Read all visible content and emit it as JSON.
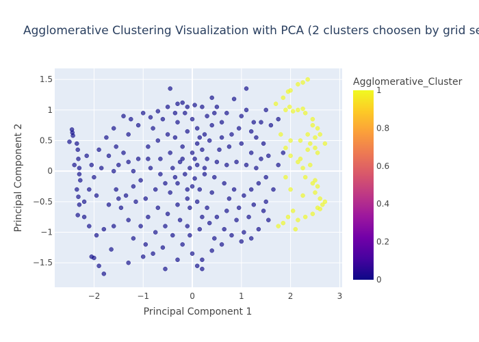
{
  "chart_data": {
    "type": "scatter",
    "title": "Agglomerative Clustering Visualization with PCA (2 clusters choosen by grid search)",
    "xlabel": "Principal Component 1",
    "ylabel": "Principal Component 2",
    "xlim": [
      -2.8,
      3.05
    ],
    "ylim": [
      -1.9,
      1.68
    ],
    "xticks": [
      -2,
      -1,
      0,
      1,
      2,
      3
    ],
    "yticks": [
      -1.5,
      -1,
      -0.5,
      0,
      0.5,
      1,
      1.5
    ],
    "xtick_labels": [
      "−2",
      "−1",
      "0",
      "1",
      "2",
      "3"
    ],
    "ytick_labels": [
      "−1.5",
      "−1",
      "−0.5",
      "0",
      "0.5",
      "1",
      "1.5"
    ],
    "grid": true,
    "colorbar": {
      "title": "Agglomerative_Cluster",
      "range": [
        0,
        1
      ],
      "ticks": [
        "0",
        "0.2",
        "0.4",
        "0.6",
        "0.8",
        "1"
      ],
      "colorscale": [
        "#0d0887",
        "#46039f",
        "#7201a8",
        "#9c179e",
        "#bd3786",
        "#d8576b",
        "#ed7953",
        "#fb9f3a",
        "#fdca26",
        "#f0f921"
      ]
    },
    "series": [
      {
        "cluster": 0,
        "color": "#0d0887",
        "points": [
          [
            -2.45,
            0.68
          ],
          [
            -2.44,
            0.63
          ],
          [
            -2.43,
            0.58
          ],
          [
            -2.35,
            0.45
          ],
          [
            -2.33,
            0.35
          ],
          [
            -2.32,
            0.2
          ],
          [
            -2.3,
            0.05
          ],
          [
            -2.3,
            -0.05
          ],
          [
            -2.28,
            -0.15
          ],
          [
            -2.35,
            -0.3
          ],
          [
            -2.32,
            -0.42
          ],
          [
            -2.2,
            -0.5
          ],
          [
            -2.4,
            0.1
          ],
          [
            -2.5,
            0.48
          ],
          [
            -2.33,
            -0.72
          ],
          [
            -2.2,
            -0.75
          ],
          [
            -2.05,
            -1.4
          ],
          [
            -2.0,
            -1.42
          ],
          [
            -1.9,
            -1.55
          ],
          [
            -1.8,
            -1.68
          ],
          [
            -1.65,
            -1.28
          ],
          [
            -1.8,
            -0.95
          ],
          [
            -1.95,
            -0.4
          ],
          [
            -2.1,
            -0.3
          ],
          [
            -2.05,
            0.1
          ],
          [
            -1.9,
            0.35
          ],
          [
            -1.7,
            0.25
          ],
          [
            -1.55,
            0.4
          ],
          [
            -1.75,
            0.55
          ],
          [
            -1.6,
            0.7
          ],
          [
            -1.5,
            0.1
          ],
          [
            -1.4,
            0.3
          ],
          [
            -1.3,
            0.6
          ],
          [
            -1.25,
            0.85
          ],
          [
            -1.1,
            0.75
          ],
          [
            -1.0,
            0.95
          ],
          [
            -0.85,
            0.88
          ],
          [
            -0.7,
            0.98
          ],
          [
            -0.5,
            1.05
          ],
          [
            -0.3,
            1.1
          ],
          [
            -0.1,
            1.05
          ],
          [
            0.05,
            1.08
          ],
          [
            0.2,
            1.05
          ],
          [
            -0.45,
            1.35
          ],
          [
            -0.2,
            1.12
          ],
          [
            0.4,
            1.2
          ],
          [
            0.5,
            1.05
          ],
          [
            0.7,
            0.95
          ],
          [
            0.85,
            1.18
          ],
          [
            1.0,
            0.9
          ],
          [
            1.1,
            1.0
          ],
          [
            1.1,
            1.35
          ],
          [
            1.25,
            0.8
          ],
          [
            1.4,
            0.8
          ],
          [
            1.5,
            1.0
          ],
          [
            1.3,
            0.55
          ],
          [
            1.45,
            0.45
          ],
          [
            1.55,
            0.25
          ],
          [
            1.2,
            0.3
          ],
          [
            1.0,
            0.45
          ],
          [
            0.8,
            0.6
          ],
          [
            0.6,
            0.55
          ],
          [
            0.4,
            0.75
          ],
          [
            0.25,
            0.6
          ],
          [
            0.1,
            0.45
          ],
          [
            -0.1,
            0.65
          ],
          [
            -0.3,
            0.8
          ],
          [
            -0.5,
            0.6
          ],
          [
            -0.7,
            0.5
          ],
          [
            -0.9,
            0.4
          ],
          [
            -1.1,
            0.2
          ],
          [
            -1.2,
            0.0
          ],
          [
            -1.05,
            -0.15
          ],
          [
            -0.85,
            0.05
          ],
          [
            -0.65,
            0.2
          ],
          [
            -0.45,
            0.3
          ],
          [
            -0.25,
            0.15
          ],
          [
            -0.05,
            0.05
          ],
          [
            0.1,
            0.1
          ],
          [
            0.3,
            0.2
          ],
          [
            0.5,
            0.15
          ],
          [
            0.7,
            0.1
          ],
          [
            0.9,
            0.15
          ],
          [
            1.1,
            0.1
          ],
          [
            1.3,
            0.05
          ],
          [
            1.5,
            -0.1
          ],
          [
            1.65,
            -0.3
          ],
          [
            1.5,
            -0.5
          ],
          [
            1.45,
            -0.65
          ],
          [
            1.25,
            -0.55
          ],
          [
            1.05,
            -0.4
          ],
          [
            0.85,
            -0.3
          ],
          [
            0.65,
            -0.2
          ],
          [
            0.45,
            -0.1
          ],
          [
            0.25,
            -0.05
          ],
          [
            0.05,
            -0.12
          ],
          [
            -0.15,
            -0.05
          ],
          [
            -0.35,
            -0.1
          ],
          [
            -0.55,
            -0.2
          ],
          [
            -0.75,
            -0.3
          ],
          [
            -0.95,
            -0.45
          ],
          [
            -1.15,
            -0.5
          ],
          [
            -1.35,
            -0.4
          ],
          [
            -1.55,
            -0.3
          ],
          [
            -1.45,
            -0.6
          ],
          [
            -1.3,
            -0.8
          ],
          [
            -1.05,
            -0.9
          ],
          [
            -0.9,
            -0.75
          ],
          [
            -0.7,
            -0.6
          ],
          [
            -0.5,
            -0.7
          ],
          [
            -0.3,
            -0.55
          ],
          [
            -0.1,
            -0.45
          ],
          [
            0.1,
            -0.5
          ],
          [
            0.3,
            -0.6
          ],
          [
            0.5,
            -0.75
          ],
          [
            0.7,
            -0.65
          ],
          [
            0.9,
            -0.8
          ],
          [
            1.05,
            -1.0
          ],
          [
            1.2,
            -1.1
          ],
          [
            1.0,
            -1.15
          ],
          [
            0.8,
            -1.05
          ],
          [
            0.6,
            -1.2
          ],
          [
            0.4,
            -1.3
          ],
          [
            0.2,
            -1.45
          ],
          [
            0.0,
            -1.35
          ],
          [
            -0.2,
            -1.2
          ],
          [
            -0.4,
            -1.05
          ],
          [
            -0.6,
            -1.25
          ],
          [
            -0.8,
            -1.35
          ],
          [
            -1.0,
            -1.4
          ],
          [
            -1.3,
            -1.5
          ],
          [
            -0.55,
            -1.6
          ],
          [
            -0.3,
            -1.45
          ],
          [
            0.1,
            -1.55
          ],
          [
            0.2,
            -1.6
          ],
          [
            -0.1,
            -0.9
          ],
          [
            0.15,
            -0.95
          ],
          [
            0.35,
            -0.85
          ],
          [
            -0.25,
            -0.8
          ],
          [
            -0.45,
            -0.35
          ],
          [
            -0.65,
            -0.05
          ],
          [
            0.0,
            0.3
          ],
          [
            0.2,
            0.35
          ],
          [
            -0.2,
            0.4
          ],
          [
            -0.4,
            0.05
          ],
          [
            0.55,
            0.35
          ],
          [
            0.75,
            0.4
          ],
          [
            -0.8,
            0.7
          ],
          [
            -0.6,
            0.85
          ],
          [
            0.0,
            0.85
          ],
          [
            0.3,
            0.9
          ],
          [
            -1.4,
            0.9
          ],
          [
            -1.7,
            -0.55
          ],
          [
            -1.6,
            -0.9
          ],
          [
            -2.15,
            0.25
          ],
          [
            -2.0,
            -0.1
          ],
          [
            -1.85,
            0.05
          ],
          [
            -1.6,
            0.0
          ],
          [
            -1.3,
            0.15
          ],
          [
            0.95,
            0.7
          ],
          [
            1.2,
            0.65
          ],
          [
            1.6,
            0.75
          ],
          [
            1.75,
            0.85
          ],
          [
            1.4,
            0.2
          ],
          [
            1.35,
            -0.2
          ],
          [
            1.2,
            -0.3
          ],
          [
            1.55,
            -0.8
          ],
          [
            1.35,
            -0.95
          ],
          [
            1.15,
            -0.75
          ],
          [
            0.95,
            -0.6
          ],
          [
            0.75,
            -0.45
          ],
          [
            -0.15,
            0.95
          ],
          [
            -0.35,
            0.95
          ],
          [
            0.1,
            0.7
          ],
          [
            0.35,
            0.5
          ],
          [
            0.6,
            0.8
          ],
          [
            -0.55,
            -0.9
          ],
          [
            -0.75,
            -1.0
          ],
          [
            -0.05,
            -1.05
          ],
          [
            0.45,
            -1.1
          ],
          [
            0.65,
            -0.95
          ],
          [
            -1.2,
            -1.1
          ],
          [
            -0.95,
            -1.2
          ],
          [
            1.85,
            0.3
          ],
          [
            1.75,
            0.1
          ],
          [
            -2.1,
            -0.9
          ],
          [
            -1.95,
            -1.05
          ],
          [
            -2.3,
            -0.55
          ],
          [
            -1.5,
            -0.45
          ],
          [
            -1.2,
            -0.25
          ],
          [
            0.0,
            -0.25
          ],
          [
            0.15,
            -0.3
          ],
          [
            -0.1,
            -0.3
          ],
          [
            0.25,
            0.05
          ],
          [
            -0.3,
            -0.2
          ],
          [
            0.4,
            -0.35
          ],
          [
            -0.2,
            0.2
          ],
          [
            0.05,
            0.2
          ],
          [
            -0.05,
            -0.6
          ],
          [
            0.2,
            -0.75
          ],
          [
            -0.35,
            0.55
          ],
          [
            0.15,
            0.55
          ],
          [
            0.45,
            0.95
          ],
          [
            -0.9,
            0.2
          ]
        ]
      },
      {
        "cluster": 1,
        "color": "#f0f921",
        "points": [
          [
            2.15,
            1.42
          ],
          [
            2.25,
            1.45
          ],
          [
            2.35,
            1.5
          ],
          [
            2.0,
            1.32
          ],
          [
            1.95,
            1.3
          ],
          [
            1.85,
            1.2
          ],
          [
            1.7,
            1.1
          ],
          [
            1.9,
            1.0
          ],
          [
            1.98,
            1.05
          ],
          [
            2.05,
            0.98
          ],
          [
            2.15,
            1.0
          ],
          [
            2.25,
            1.02
          ],
          [
            2.3,
            0.95
          ],
          [
            2.45,
            0.85
          ],
          [
            2.55,
            0.7
          ],
          [
            2.6,
            0.6
          ],
          [
            2.5,
            0.55
          ],
          [
            2.4,
            0.45
          ],
          [
            2.5,
            0.38
          ],
          [
            2.55,
            0.3
          ],
          [
            2.35,
            0.35
          ],
          [
            2.2,
            0.5
          ],
          [
            2.0,
            0.5
          ],
          [
            1.9,
            0.38
          ],
          [
            2.0,
            0.25
          ],
          [
            2.15,
            0.15
          ],
          [
            2.25,
            0.05
          ],
          [
            2.2,
            0.2
          ],
          [
            2.4,
            0.1
          ],
          [
            2.3,
            -0.1
          ],
          [
            2.45,
            -0.2
          ],
          [
            2.5,
            -0.35
          ],
          [
            2.6,
            -0.45
          ],
          [
            2.65,
            -0.55
          ],
          [
            2.55,
            -0.6
          ],
          [
            2.45,
            -0.7
          ],
          [
            2.3,
            -0.75
          ],
          [
            2.15,
            -0.8
          ],
          [
            2.05,
            -0.65
          ],
          [
            1.95,
            -0.75
          ],
          [
            1.85,
            -0.85
          ],
          [
            1.75,
            -0.9
          ],
          [
            2.0,
            -0.3
          ],
          [
            2.6,
            -0.62
          ],
          [
            2.7,
            -0.5
          ],
          [
            2.5,
            -0.15
          ],
          [
            2.35,
            0.6
          ],
          [
            2.45,
            0.75
          ],
          [
            2.7,
            0.45
          ],
          [
            1.8,
            0.6
          ],
          [
            2.1,
            -0.95
          ],
          [
            2.25,
            -0.4
          ],
          [
            2.55,
            -0.25
          ],
          [
            1.9,
            -0.1
          ]
        ]
      }
    ]
  }
}
